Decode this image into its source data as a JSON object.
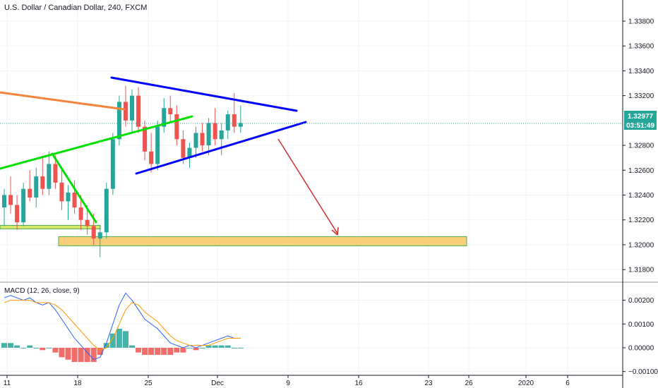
{
  "header": {
    "title": "U.S. Dollar / Canadian Dollar, 240, FXCM"
  },
  "price_axis": {
    "ticks": [
      "1.33800",
      "1.33600",
      "1.33400",
      "1.33200",
      "1.32800",
      "1.32600",
      "1.32400",
      "1.32200",
      "1.32000",
      "1.31800"
    ],
    "tick_values": [
      1.338,
      1.336,
      1.334,
      1.332,
      1.328,
      1.326,
      1.324,
      1.322,
      1.32,
      1.318
    ],
    "current_price_label": "1.32977",
    "countdown_label": "03:51:49",
    "current_price": 1.32977
  },
  "macd_panel": {
    "legend": "MACD (12, 26, close, 9)",
    "ticks": [
      "0.00200",
      "0.00100",
      "0.00000",
      "−0.00100"
    ],
    "tick_values": [
      0.002,
      0.001,
      0.0,
      -0.001
    ]
  },
  "time_axis": {
    "labels": [
      "11",
      "18",
      "25",
      "Dec",
      "9",
      "16",
      "23",
      "26",
      "2020",
      "6"
    ]
  },
  "colors": {
    "bull": "#26a69a",
    "bear": "#ef5350",
    "triangle": "#0000ff",
    "trendline": "#00e000",
    "resistance": "#f5833b",
    "arrow": "#d32f2f",
    "zone_fill": "#f7cf7a",
    "zone_border": "#4caf50",
    "macd_line": "#2962ff",
    "signal_line": "#ff9800",
    "price_badge": "#26a69a"
  },
  "chart_data": {
    "type": "candlestick",
    "title": "U.S. Dollar / Canadian Dollar, 240, FXCM",
    "ylim": [
      1.3171,
      1.3397
    ],
    "candles": [
      {
        "o": 1.323,
        "h": 1.3245,
        "l": 1.3215,
        "c": 1.324
      },
      {
        "o": 1.324,
        "h": 1.3255,
        "l": 1.3225,
        "c": 1.3232
      },
      {
        "o": 1.3232,
        "h": 1.324,
        "l": 1.3212,
        "c": 1.3218
      },
      {
        "o": 1.3218,
        "h": 1.325,
        "l": 1.3215,
        "c": 1.3245
      },
      {
        "o": 1.3245,
        "h": 1.326,
        "l": 1.3235,
        "c": 1.3238
      },
      {
        "o": 1.3238,
        "h": 1.3262,
        "l": 1.323,
        "c": 1.3255
      },
      {
        "o": 1.3255,
        "h": 1.327,
        "l": 1.324,
        "c": 1.3245
      },
      {
        "o": 1.3245,
        "h": 1.3275,
        "l": 1.324,
        "c": 1.3265
      },
      {
        "o": 1.3265,
        "h": 1.3272,
        "l": 1.3245,
        "c": 1.325
      },
      {
        "o": 1.325,
        "h": 1.3262,
        "l": 1.3228,
        "c": 1.3235
      },
      {
        "o": 1.3235,
        "h": 1.3248,
        "l": 1.322,
        "c": 1.3242
      },
      {
        "o": 1.3242,
        "h": 1.3252,
        "l": 1.3225,
        "c": 1.323
      },
      {
        "o": 1.323,
        "h": 1.324,
        "l": 1.3212,
        "c": 1.322
      },
      {
        "o": 1.322,
        "h": 1.3232,
        "l": 1.3208,
        "c": 1.3215
      },
      {
        "o": 1.3215,
        "h": 1.3225,
        "l": 1.32,
        "c": 1.3205
      },
      {
        "o": 1.3205,
        "h": 1.3215,
        "l": 1.319,
        "c": 1.321
      },
      {
        "o": 1.321,
        "h": 1.325,
        "l": 1.3205,
        "c": 1.3245
      },
      {
        "o": 1.3245,
        "h": 1.329,
        "l": 1.324,
        "c": 1.3285
      },
      {
        "o": 1.3285,
        "h": 1.332,
        "l": 1.328,
        "c": 1.3315
      },
      {
        "o": 1.3315,
        "h": 1.3328,
        "l": 1.3295,
        "c": 1.33
      },
      {
        "o": 1.33,
        "h": 1.3325,
        "l": 1.329,
        "c": 1.332
      },
      {
        "o": 1.332,
        "h": 1.3327,
        "l": 1.329,
        "c": 1.3295
      },
      {
        "o": 1.3295,
        "h": 1.33,
        "l": 1.3268,
        "c": 1.3275
      },
      {
        "o": 1.3275,
        "h": 1.329,
        "l": 1.3258,
        "c": 1.3265
      },
      {
        "o": 1.3265,
        "h": 1.33,
        "l": 1.326,
        "c": 1.3295
      },
      {
        "o": 1.3295,
        "h": 1.3318,
        "l": 1.329,
        "c": 1.331
      },
      {
        "o": 1.331,
        "h": 1.332,
        "l": 1.3298,
        "c": 1.3305
      },
      {
        "o": 1.3305,
        "h": 1.3312,
        "l": 1.328,
        "c": 1.3285
      },
      {
        "o": 1.3285,
        "h": 1.3292,
        "l": 1.3265,
        "c": 1.327
      },
      {
        "o": 1.327,
        "h": 1.3282,
        "l": 1.3262,
        "c": 1.3278
      },
      {
        "o": 1.3278,
        "h": 1.3295,
        "l": 1.327,
        "c": 1.329
      },
      {
        "o": 1.329,
        "h": 1.3298,
        "l": 1.3275,
        "c": 1.328
      },
      {
        "o": 1.328,
        "h": 1.3302,
        "l": 1.3272,
        "c": 1.3298
      },
      {
        "o": 1.3298,
        "h": 1.331,
        "l": 1.328,
        "c": 1.3285
      },
      {
        "o": 1.3285,
        "h": 1.3298,
        "l": 1.3272,
        "c": 1.3292
      },
      {
        "o": 1.3292,
        "h": 1.3308,
        "l": 1.3285,
        "c": 1.3305
      },
      {
        "o": 1.3305,
        "h": 1.3322,
        "l": 1.329,
        "c": 1.3295
      },
      {
        "o": 1.3295,
        "h": 1.3312,
        "l": 1.329,
        "c": 1.3298
      }
    ],
    "drawings": [
      {
        "name": "descending-resistance-line",
        "points": [
          [
            0,
            1.3318
          ],
          [
            18,
            1.3305
          ]
        ]
      },
      {
        "name": "triangle-upper-line",
        "points": [
          [
            19,
            1.3327
          ],
          [
            37,
            1.3302
          ]
        ]
      },
      {
        "name": "triangle-lower-line",
        "points": [
          [
            22,
            1.3255
          ],
          [
            37,
            1.329
          ]
        ]
      },
      {
        "name": "green-uptrend-line",
        "points": [
          [
            0,
            1.326
          ],
          [
            33,
            1.3298
          ]
        ]
      },
      {
        "name": "green-breakdown-line",
        "points": [
          [
            9,
            1.327
          ],
          [
            16,
            1.3215
          ]
        ]
      }
    ],
    "support_zone": [
      1.3202,
      1.3206
    ],
    "arrow_target": 1.3215,
    "macd": {
      "macd_line": [
        0.0021,
        0.0022,
        0.0021,
        0.002,
        0.0021,
        0.0019,
        0.0018,
        0.0019,
        0.0016,
        0.0012,
        0.0008,
        0.0004,
        0.0001,
        -0.0002,
        -0.0005,
        -0.0004,
        0.0002,
        0.001,
        0.0018,
        0.0023,
        0.002,
        0.0016,
        0.0012,
        0.001,
        0.0008,
        0.0005,
        0.0002,
        0.0001,
        0.0,
        0.0001,
        0.0,
        0.0001,
        0.0002,
        0.0003,
        0.0004,
        0.0005,
        0.0004,
        0.0004
      ],
      "signal_line": [
        0.0019,
        0.002,
        0.002,
        0.002,
        0.002,
        0.0019,
        0.0019,
        0.0019,
        0.0018,
        0.0016,
        0.0013,
        0.001,
        0.0007,
        0.0004,
        0.0001,
        -0.0001,
        0.0,
        0.0004,
        0.001,
        0.0016,
        0.0019,
        0.0018,
        0.0015,
        0.0013,
        0.0011,
        0.0008,
        0.0005,
        0.0003,
        0.0002,
        0.0001,
        0.0001,
        0.0001,
        0.0001,
        0.0002,
        0.0003,
        0.0004,
        0.0004,
        0.0004
      ],
      "histogram": [
        0.0002,
        0.0002,
        0.0001,
        0.0,
        0.0001,
        0.0,
        -0.0001,
        0.0,
        -0.0002,
        -0.0004,
        -0.0005,
        -0.0006,
        -0.0006,
        -0.0006,
        -0.0006,
        -0.0003,
        0.0002,
        0.0006,
        0.0008,
        0.0007,
        0.0001,
        -0.0002,
        -0.0003,
        -0.0003,
        -0.0003,
        -0.0003,
        -0.0003,
        -0.0002,
        -0.0002,
        0.0,
        -0.0001,
        0.0,
        0.0001,
        0.0001,
        0.0001,
        0.0001,
        0.0,
        0.0
      ],
      "ylim": [
        -0.0011,
        0.0027
      ]
    }
  }
}
